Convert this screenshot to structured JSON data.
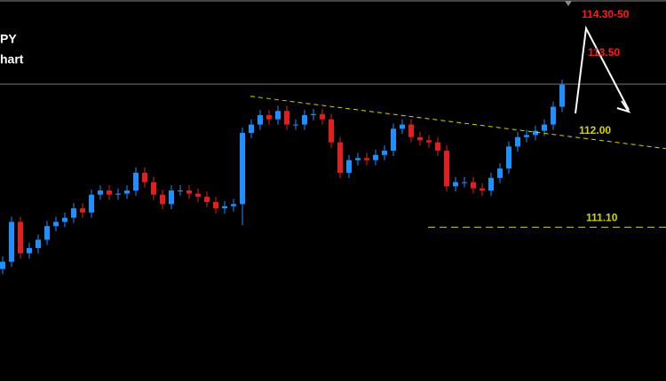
{
  "chart_data": {
    "type": "candlestick",
    "title": "PY",
    "subtitle": "hart",
    "xlim": [
      -0.3,
      74.7
    ],
    "ylim": [
      109.63,
      113.27
    ],
    "up_color": "#1e90ff",
    "down_color": "#e02020",
    "open": [
      110.7,
      110.77,
      111.15,
      110.85,
      110.9,
      110.98,
      111.11,
      111.15,
      111.19,
      111.28,
      111.24,
      111.41,
      111.45,
      111.41,
      111.42,
      111.45,
      111.62,
      111.53,
      111.41,
      111.32,
      111.45,
      111.45,
      111.42,
      111.39,
      111.34,
      111.28,
      111.3,
      111.32,
      112.0,
      112.08,
      112.17,
      112.13,
      112.21,
      112.08,
      112.08,
      112.17,
      112.18,
      112.13,
      111.91,
      111.62,
      111.74,
      111.76,
      111.74,
      111.79,
      111.83,
      112.04,
      112.08,
      111.96,
      111.93,
      111.91,
      111.83,
      111.49,
      111.53,
      111.53,
      111.47,
      111.45,
      111.57,
      111.66,
      111.87,
      111.96,
      111.98,
      112.02,
      112.08,
      112.25
    ],
    "high": [
      110.82,
      111.2,
      111.2,
      110.95,
      111.03,
      111.16,
      111.2,
      111.24,
      111.33,
      111.33,
      111.46,
      111.5,
      111.5,
      111.47,
      111.5,
      111.67,
      111.67,
      111.58,
      111.46,
      111.5,
      111.5,
      111.5,
      111.47,
      111.44,
      111.39,
      111.35,
      111.37,
      112.05,
      112.13,
      112.22,
      112.22,
      112.26,
      112.26,
      112.13,
      112.22,
      112.23,
      112.23,
      112.18,
      111.96,
      111.79,
      111.81,
      111.81,
      111.84,
      111.88,
      112.09,
      112.13,
      112.13,
      112.01,
      111.98,
      111.96,
      111.88,
      111.58,
      111.58,
      111.58,
      111.52,
      111.62,
      111.71,
      111.92,
      112.01,
      112.03,
      112.07,
      112.13,
      112.3,
      112.51
    ],
    "low": [
      110.65,
      110.72,
      110.8,
      110.8,
      110.85,
      110.93,
      111.06,
      111.1,
      111.14,
      111.19,
      111.19,
      111.36,
      111.36,
      111.36,
      111.37,
      111.4,
      111.48,
      111.36,
      111.27,
      111.27,
      111.4,
      111.37,
      111.34,
      111.29,
      111.23,
      111.23,
      111.25,
      111.12,
      111.95,
      112.03,
      112.08,
      112.08,
      112.03,
      112.03,
      112.03,
      112.12,
      112.08,
      111.86,
      111.57,
      111.57,
      111.69,
      111.69,
      111.69,
      111.74,
      111.78,
      111.99,
      111.91,
      111.88,
      111.86,
      111.78,
      111.44,
      111.44,
      111.48,
      111.42,
      111.4,
      111.4,
      111.52,
      111.61,
      111.82,
      111.91,
      111.93,
      111.97,
      112.03,
      112.2
    ],
    "close": [
      110.77,
      111.15,
      110.85,
      110.9,
      110.98,
      111.11,
      111.15,
      111.19,
      111.28,
      111.24,
      111.41,
      111.45,
      111.41,
      111.42,
      111.45,
      111.62,
      111.53,
      111.41,
      111.32,
      111.45,
      111.45,
      111.42,
      111.39,
      111.34,
      111.28,
      111.3,
      111.32,
      112.0,
      112.08,
      112.17,
      112.13,
      112.21,
      112.08,
      112.08,
      112.17,
      112.18,
      112.13,
      111.91,
      111.62,
      111.74,
      111.76,
      111.74,
      111.79,
      111.83,
      112.04,
      112.08,
      111.96,
      111.93,
      111.91,
      111.83,
      111.49,
      111.53,
      111.53,
      111.47,
      111.45,
      111.57,
      111.66,
      111.87,
      111.96,
      111.98,
      112.02,
      112.08,
      112.25,
      112.46
    ],
    "trendline": {
      "label": "112.00",
      "x": [
        27.9,
        74.7
      ],
      "values": [
        112.35,
        111.85
      ],
      "color": "#d4d400"
    },
    "hline": {
      "label": "111.10",
      "value": 111.1,
      "color": "#d4d400"
    },
    "targets": [
      "114.30-50",
      "113.50"
    ]
  }
}
